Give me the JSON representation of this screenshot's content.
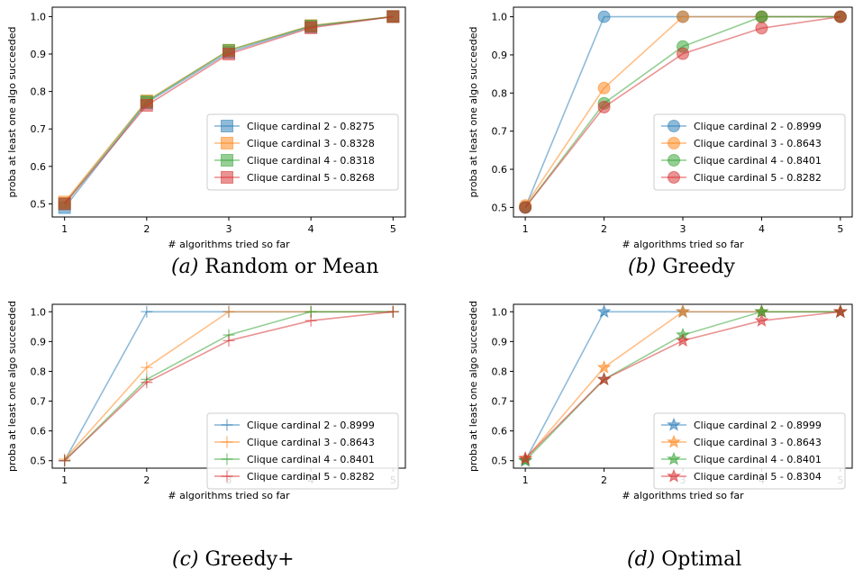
{
  "colors": {
    "tab_blue": "#1f77b4",
    "tab_orange": "#ff7f0e",
    "tab_green": "#2ca02c",
    "tab_red": "#d62728",
    "axis": "#000000",
    "legend_border": "#cccccc"
  },
  "chart_data": [
    {
      "type": "line",
      "marker": "square",
      "caption_letter": "(a)",
      "caption_text": " Random or Mean",
      "xlabel": "# algorithms tried so far",
      "ylabel": "proba at least one algo succeeded",
      "x": [
        1,
        2,
        3,
        4,
        5
      ],
      "xticks": [
        "1",
        "2",
        "3",
        "4",
        "5"
      ],
      "yticks": [
        "0.5",
        "0.6",
        "0.7",
        "0.8",
        "0.9",
        "1.0"
      ],
      "xlim": [
        0.85,
        5.15
      ],
      "ylim": [
        0.465,
        1.025
      ],
      "grid": false,
      "legend_position": "lower right",
      "series": [
        {
          "name": "Clique cardinal 2 - 0.8275",
          "values": [
            0.49,
            0.77,
            0.905,
            0.973,
            1.0
          ]
        },
        {
          "name": "Clique cardinal 3 - 0.8328",
          "values": [
            0.505,
            0.775,
            0.91,
            0.976,
            1.0
          ]
        },
        {
          "name": "Clique cardinal 4 - 0.8318",
          "values": [
            0.5,
            0.773,
            0.91,
            0.975,
            1.0
          ]
        },
        {
          "name": "Clique cardinal 5 - 0.8268",
          "values": [
            0.5,
            0.763,
            0.9,
            0.97,
            1.0
          ]
        }
      ]
    },
    {
      "type": "line",
      "marker": "circle",
      "caption_letter": "(b)",
      "caption_text": " Greedy",
      "xlabel": "# algorithms tried so far",
      "ylabel": "proba at least one algo succeeded",
      "x": [
        1,
        2,
        3,
        4,
        5
      ],
      "xticks": [
        "1",
        "2",
        "3",
        "4",
        "5"
      ],
      "yticks": [
        "0.5",
        "0.6",
        "0.7",
        "0.8",
        "0.9",
        "1.0"
      ],
      "xlim": [
        0.85,
        5.15
      ],
      "ylim": [
        0.475,
        1.025
      ],
      "grid": false,
      "legend_position": "lower right",
      "series": [
        {
          "name": "Clique cardinal 2 - 0.8999",
          "values": [
            0.5,
            1.0,
            1.0,
            1.0,
            1.0
          ]
        },
        {
          "name": "Clique cardinal 3 - 0.8643",
          "values": [
            0.505,
            0.813,
            1.0,
            1.0,
            1.0
          ]
        },
        {
          "name": "Clique cardinal 4 - 0.8401",
          "values": [
            0.5,
            0.773,
            0.922,
            1.0,
            1.0
          ]
        },
        {
          "name": "Clique cardinal 5 - 0.8282",
          "values": [
            0.5,
            0.763,
            0.903,
            0.97,
            1.0
          ]
        }
      ]
    },
    {
      "type": "line",
      "marker": "plus",
      "caption_letter": "(c)",
      "caption_text": " Greedy+",
      "xlabel": "# algorithms tried so far",
      "ylabel": "proba at least one algo succeeded",
      "x": [
        1,
        2,
        3,
        4,
        5
      ],
      "xticks": [
        "1",
        "2",
        "3",
        "4",
        "5"
      ],
      "yticks": [
        "0.5",
        "0.6",
        "0.7",
        "0.8",
        "0.9",
        "1.0"
      ],
      "xlim": [
        0.85,
        5.15
      ],
      "ylim": [
        0.475,
        1.025
      ],
      "grid": false,
      "legend_position": "lower right",
      "series": [
        {
          "name": "Clique cardinal 2 - 0.8999",
          "values": [
            0.5,
            1.0,
            1.0,
            1.0,
            1.0
          ]
        },
        {
          "name": "Clique cardinal 3 - 0.8643",
          "values": [
            0.505,
            0.813,
            1.0,
            1.0,
            1.0
          ]
        },
        {
          "name": "Clique cardinal 4 - 0.8401",
          "values": [
            0.5,
            0.773,
            0.922,
            1.0,
            1.0
          ]
        },
        {
          "name": "Clique cardinal 5 - 0.8282",
          "values": [
            0.5,
            0.763,
            0.903,
            0.97,
            1.0
          ]
        }
      ]
    },
    {
      "type": "line",
      "marker": "star",
      "caption_letter": "(d)",
      "caption_text": " Optimal",
      "xlabel": "# algorithms tried so far",
      "ylabel": "proba at least one algo succeeded",
      "x": [
        1,
        2,
        3,
        4,
        5
      ],
      "xticks": [
        "1",
        "2",
        "3",
        "4",
        "5"
      ],
      "yticks": [
        "0.5",
        "0.6",
        "0.7",
        "0.8",
        "0.9",
        "1.0"
      ],
      "xlim": [
        0.85,
        5.15
      ],
      "ylim": [
        0.475,
        1.025
      ],
      "grid": false,
      "legend_position": "lower right",
      "series": [
        {
          "name": "Clique cardinal 2 - 0.8999",
          "values": [
            0.5,
            1.0,
            1.0,
            1.0,
            1.0
          ]
        },
        {
          "name": "Clique cardinal 3 - 0.8643",
          "values": [
            0.505,
            0.813,
            1.0,
            1.0,
            1.0
          ]
        },
        {
          "name": "Clique cardinal 4 - 0.8401",
          "values": [
            0.5,
            0.773,
            0.922,
            1.0,
            1.0
          ]
        },
        {
          "name": "Clique cardinal 5 - 0.8304",
          "values": [
            0.508,
            0.773,
            0.903,
            0.97,
            1.0
          ]
        }
      ]
    }
  ]
}
